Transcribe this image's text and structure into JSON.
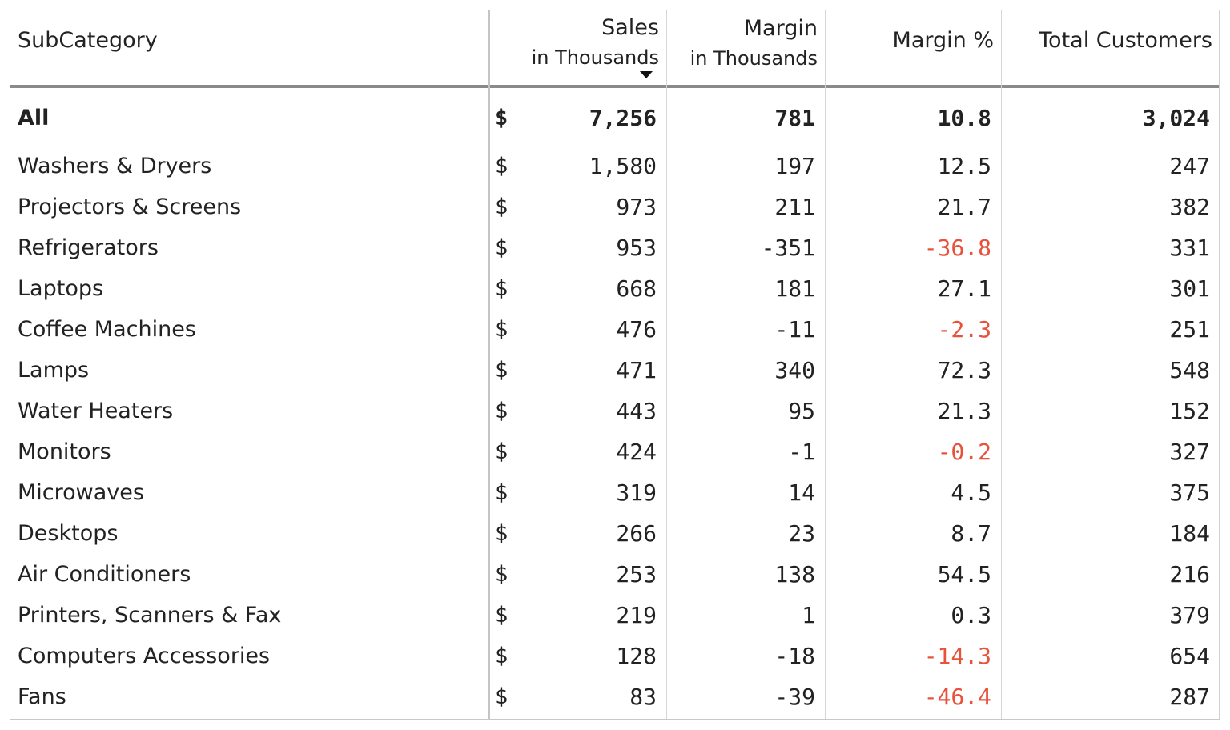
{
  "chart_data": {
    "type": "table",
    "columns": [
      {
        "key": "subcategory",
        "label": "SubCategory",
        "sublabel": ""
      },
      {
        "key": "sales",
        "label": "Sales",
        "sublabel": "in Thousands",
        "sorted": "descending"
      },
      {
        "key": "margin",
        "label": "Margin",
        "sublabel": "in Thousands"
      },
      {
        "key": "margin_pct",
        "label": "Margin %",
        "sublabel": ""
      },
      {
        "key": "customers",
        "label": "Total Customers",
        "sublabel": ""
      }
    ],
    "currency_symbol": "$",
    "negative_color": "#e8523b",
    "total": {
      "subcategory": "All",
      "sales": "7,256",
      "margin": "781",
      "margin_pct": "10.8",
      "customers": "3,024"
    },
    "rows": [
      {
        "subcategory": "Washers & Dryers",
        "sales": "1,580",
        "margin": "197",
        "margin_pct": "12.5",
        "customers": "247"
      },
      {
        "subcategory": "Projectors & Screens",
        "sales": "973",
        "margin": "211",
        "margin_pct": "21.7",
        "customers": "382"
      },
      {
        "subcategory": "Refrigerators",
        "sales": "953",
        "margin": "-351",
        "margin_pct": "-36.8",
        "customers": "331"
      },
      {
        "subcategory": "Laptops",
        "sales": "668",
        "margin": "181",
        "margin_pct": "27.1",
        "customers": "301"
      },
      {
        "subcategory": "Coffee Machines",
        "sales": "476",
        "margin": "-11",
        "margin_pct": "-2.3",
        "customers": "251"
      },
      {
        "subcategory": "Lamps",
        "sales": "471",
        "margin": "340",
        "margin_pct": "72.3",
        "customers": "548"
      },
      {
        "subcategory": "Water Heaters",
        "sales": "443",
        "margin": "95",
        "margin_pct": "21.3",
        "customers": "152"
      },
      {
        "subcategory": "Monitors",
        "sales": "424",
        "margin": "-1",
        "margin_pct": "-0.2",
        "customers": "327"
      },
      {
        "subcategory": "Microwaves",
        "sales": "319",
        "margin": "14",
        "margin_pct": "4.5",
        "customers": "375"
      },
      {
        "subcategory": "Desktops",
        "sales": "266",
        "margin": "23",
        "margin_pct": "8.7",
        "customers": "184"
      },
      {
        "subcategory": "Air Conditioners",
        "sales": "253",
        "margin": "138",
        "margin_pct": "54.5",
        "customers": "216"
      },
      {
        "subcategory": "Printers, Scanners & Fax",
        "sales": "219",
        "margin": "1",
        "margin_pct": "0.3",
        "customers": "379"
      },
      {
        "subcategory": "Computers Accessories",
        "sales": "128",
        "margin": "-18",
        "margin_pct": "-14.3",
        "customers": "654"
      },
      {
        "subcategory": "Fans",
        "sales": "83",
        "margin": "-39",
        "margin_pct": "-46.4",
        "customers": "287"
      }
    ]
  }
}
